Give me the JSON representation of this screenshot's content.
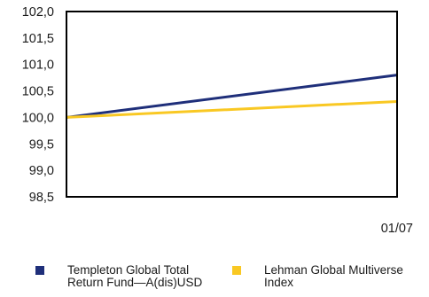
{
  "chart_data": {
    "type": "line",
    "title": "",
    "xlabel": "",
    "ylabel": "",
    "ylim": [
      98.5,
      102.0
    ],
    "y_ticks": [
      "102,0",
      "101,5",
      "101,0",
      "100,5",
      "100,0",
      "99,5",
      "99,0",
      "98,5"
    ],
    "y_tick_values": [
      102.0,
      101.5,
      101.0,
      100.5,
      100.0,
      99.5,
      99.0,
      98.5
    ],
    "x_range": [
      0,
      1
    ],
    "x_tick_label": "01/07",
    "grid": false,
    "legend_position": "bottom",
    "series": [
      {
        "name": "Templeton Global Total Return Fund—A(dis)USD",
        "legend_lines": [
          "Templeton Global Total",
          "Return Fund—A(dis)USD"
        ],
        "color": "#1f2f7a",
        "x": [
          0,
          1
        ],
        "values": [
          100.0,
          100.8
        ]
      },
      {
        "name": "Lehman Global Multiverse Index",
        "legend_lines": [
          "Lehman Global Multiverse",
          "Index"
        ],
        "color": "#f9c823",
        "x": [
          0,
          1
        ],
        "values": [
          100.0,
          100.3
        ]
      }
    ]
  }
}
